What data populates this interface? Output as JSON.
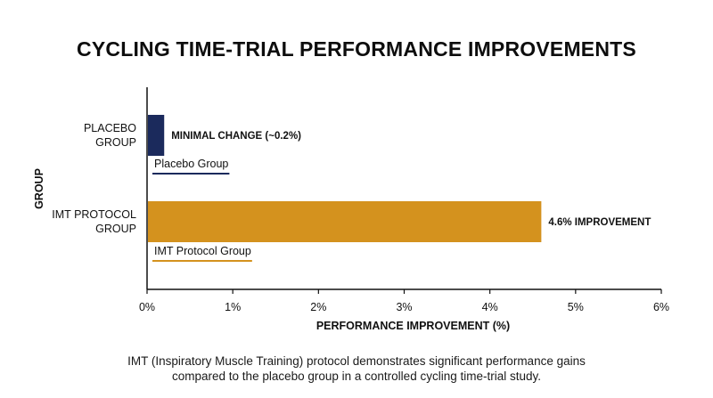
{
  "chart_data": {
    "type": "bar",
    "orientation": "horizontal",
    "title": "CYCLING TIME-TRIAL PERFORMANCE IMPROVEMENTS",
    "xlabel": "PERFORMANCE IMPROVEMENT (%)",
    "ylabel": "GROUP",
    "xlim": [
      0,
      6
    ],
    "xticks": [
      "0%",
      "1%",
      "2%",
      "3%",
      "4%",
      "5%",
      "6%"
    ],
    "grid": false,
    "categories": [
      {
        "label_lines": [
          "PLACEBO",
          "GROUP"
        ],
        "value": 0.2,
        "color": "#1b2a5c",
        "annotation": "MINIMAL CHANGE (~0.2%)",
        "legend": "Placebo Group"
      },
      {
        "label_lines": [
          "IMT PROTOCOL",
          "GROUP"
        ],
        "value": 4.6,
        "color": "#d4921e",
        "annotation": "4.6% IMPROVEMENT",
        "legend": "IMT Protocol Group"
      }
    ]
  },
  "caption_lines": [
    "IMT (Inspiratory Muscle Training) protocol demonstrates significant performance gains",
    "compared to the placebo group in a controlled cycling time-trial study."
  ]
}
